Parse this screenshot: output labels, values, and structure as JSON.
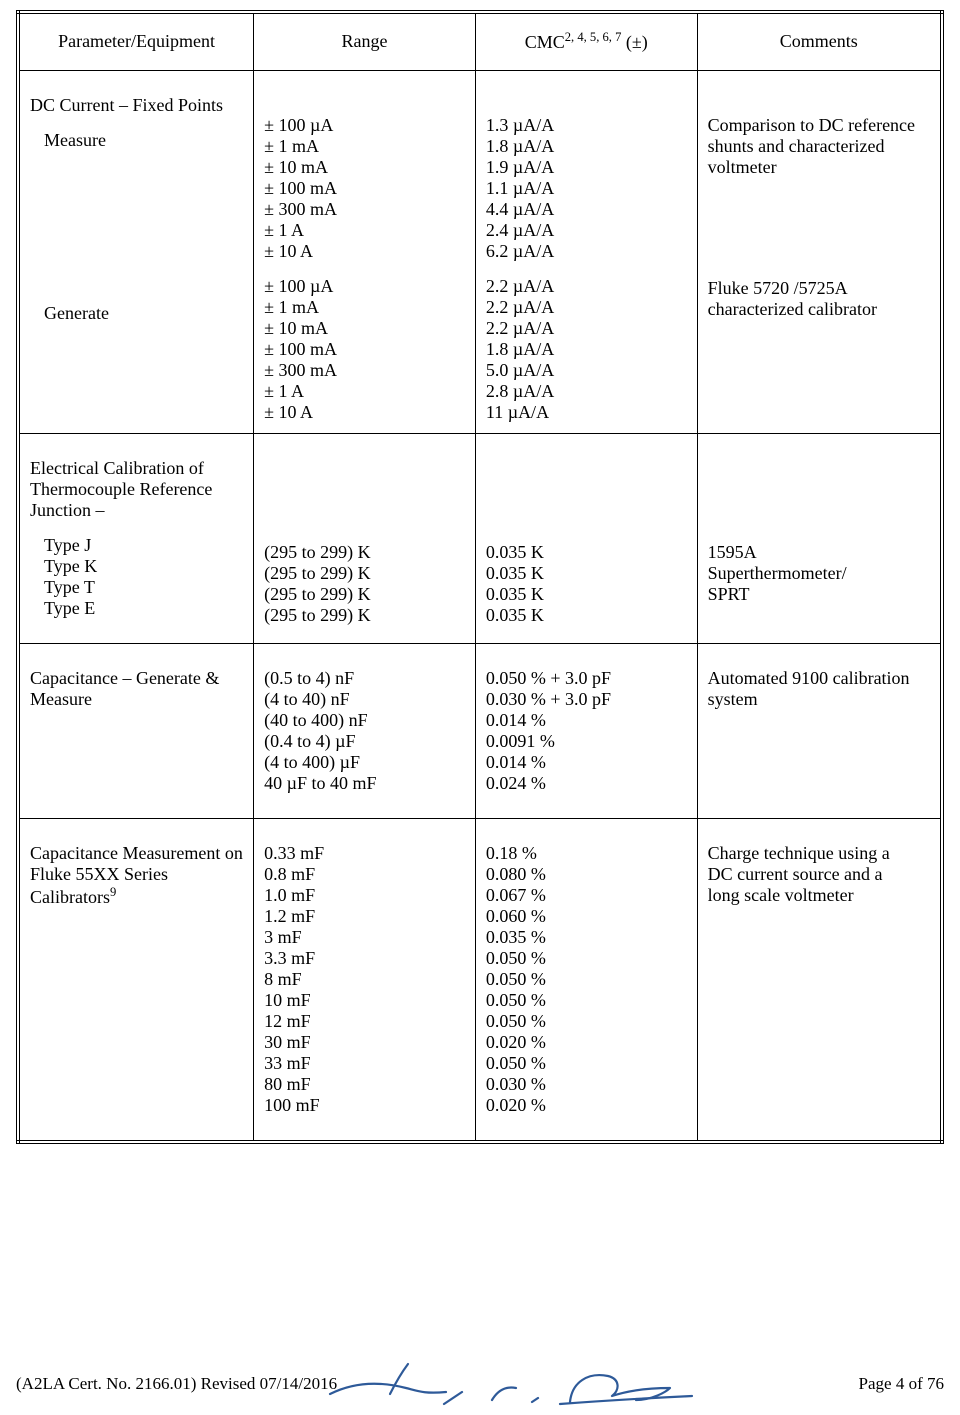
{
  "headers": {
    "param": "Parameter/Equipment",
    "range": "Range",
    "cmc_label": "CMC",
    "cmc_super": "2, 4, 5, 6, 7",
    "cmc_suffix": " (±)",
    "comments": "Comments"
  },
  "rows": [
    {
      "title": "DC Current – Fixed Points",
      "groups": [
        {
          "label": "Measure",
          "ranges": [
            "± 100 µA",
            "± 1 mA",
            "± 10 mA",
            "± 100 mA",
            "± 300 mA",
            "± 1 A",
            "± 10 A"
          ],
          "cmcs": [
            "1.3 µA/A",
            "1.8 µA/A",
            "1.9 µA/A",
            "1.1 µA/A",
            "4.4 µA/A",
            "2.4 µA/A",
            "6.2 µA/A"
          ],
          "comment": "Comparison to DC reference shunts and characterized voltmeter"
        },
        {
          "label": "Generate",
          "ranges": [
            "± 100 µA",
            "± 1 mA",
            "± 10 mA",
            "± 100 mA",
            "± 300 mA",
            "± 1 A",
            "± 10 A"
          ],
          "cmcs": [
            "2.2 µA/A",
            "2.2 µA/A",
            "2.2 µA/A",
            "1.8 µA/A",
            "5.0 µA/A",
            "2.8 µA/A",
            "11 µA/A"
          ],
          "comment": "Fluke 5720 /5725A characterized calibrator"
        }
      ]
    },
    {
      "title": "Electrical Calibration of Thermocouple Reference Junction –",
      "groups": [
        {
          "types": [
            "Type J",
            "Type K",
            "Type T",
            "Type E"
          ],
          "ranges": [
            "(295 to 299) K",
            "(295 to 299) K",
            "(295 to 299) K",
            "(295 to 299) K"
          ],
          "cmcs": [
            "0.035 K",
            "0.035 K",
            "0.035 K",
            "0.035 K"
          ],
          "comment": "1595A Superthermometer/ SPRT"
        }
      ]
    },
    {
      "title": "Capacitance – Generate & Measure",
      "groups": [
        {
          "ranges": [
            "(0.5 to 4) nF",
            "(4 to 40) nF",
            "(40 to 400) nF",
            "(0.4 to 4) µF",
            "(4 to 400) µF",
            "40 µF to 40 mF"
          ],
          "cmcs": [
            "0.050 % + 3.0 pF",
            "0.030 % + 3.0 pF",
            "0.014 %",
            "0.0091 %",
            "0.014 %",
            "0.024 %"
          ],
          "comment": "Automated 9100 calibration system"
        }
      ]
    },
    {
      "title_html": "Capacitance Measurement on Fluke 55XX Series Calibrators",
      "title_super": "9",
      "groups": [
        {
          "ranges": [
            "0.33 mF",
            "0.8 mF",
            "1.0 mF",
            "1.2 mF",
            "3 mF",
            "3.3 mF",
            "8 mF",
            "10 mF",
            "12 mF",
            "30 mF",
            "33 mF",
            "80 mF",
            "100 mF"
          ],
          "cmcs": [
            "0.18 %",
            "0.080 %",
            "0.067 %",
            "0.060 %",
            "0.035 %",
            "0.050 %",
            "0.050 %",
            "0.050 %",
            "0.050 %",
            "0.020 %",
            "0.050 %",
            "0.030 %",
            "0.020 %"
          ],
          "comment": "Charge technique using a DC current source and a long scale voltmeter"
        }
      ]
    }
  ],
  "footer": {
    "left": "(A2LA Cert. No. 2166.01) Revised 07/14/2016",
    "right": "Page 4 of 76"
  },
  "signature": {
    "stroke": "#2e5a99",
    "stroke_width": 2.2
  }
}
